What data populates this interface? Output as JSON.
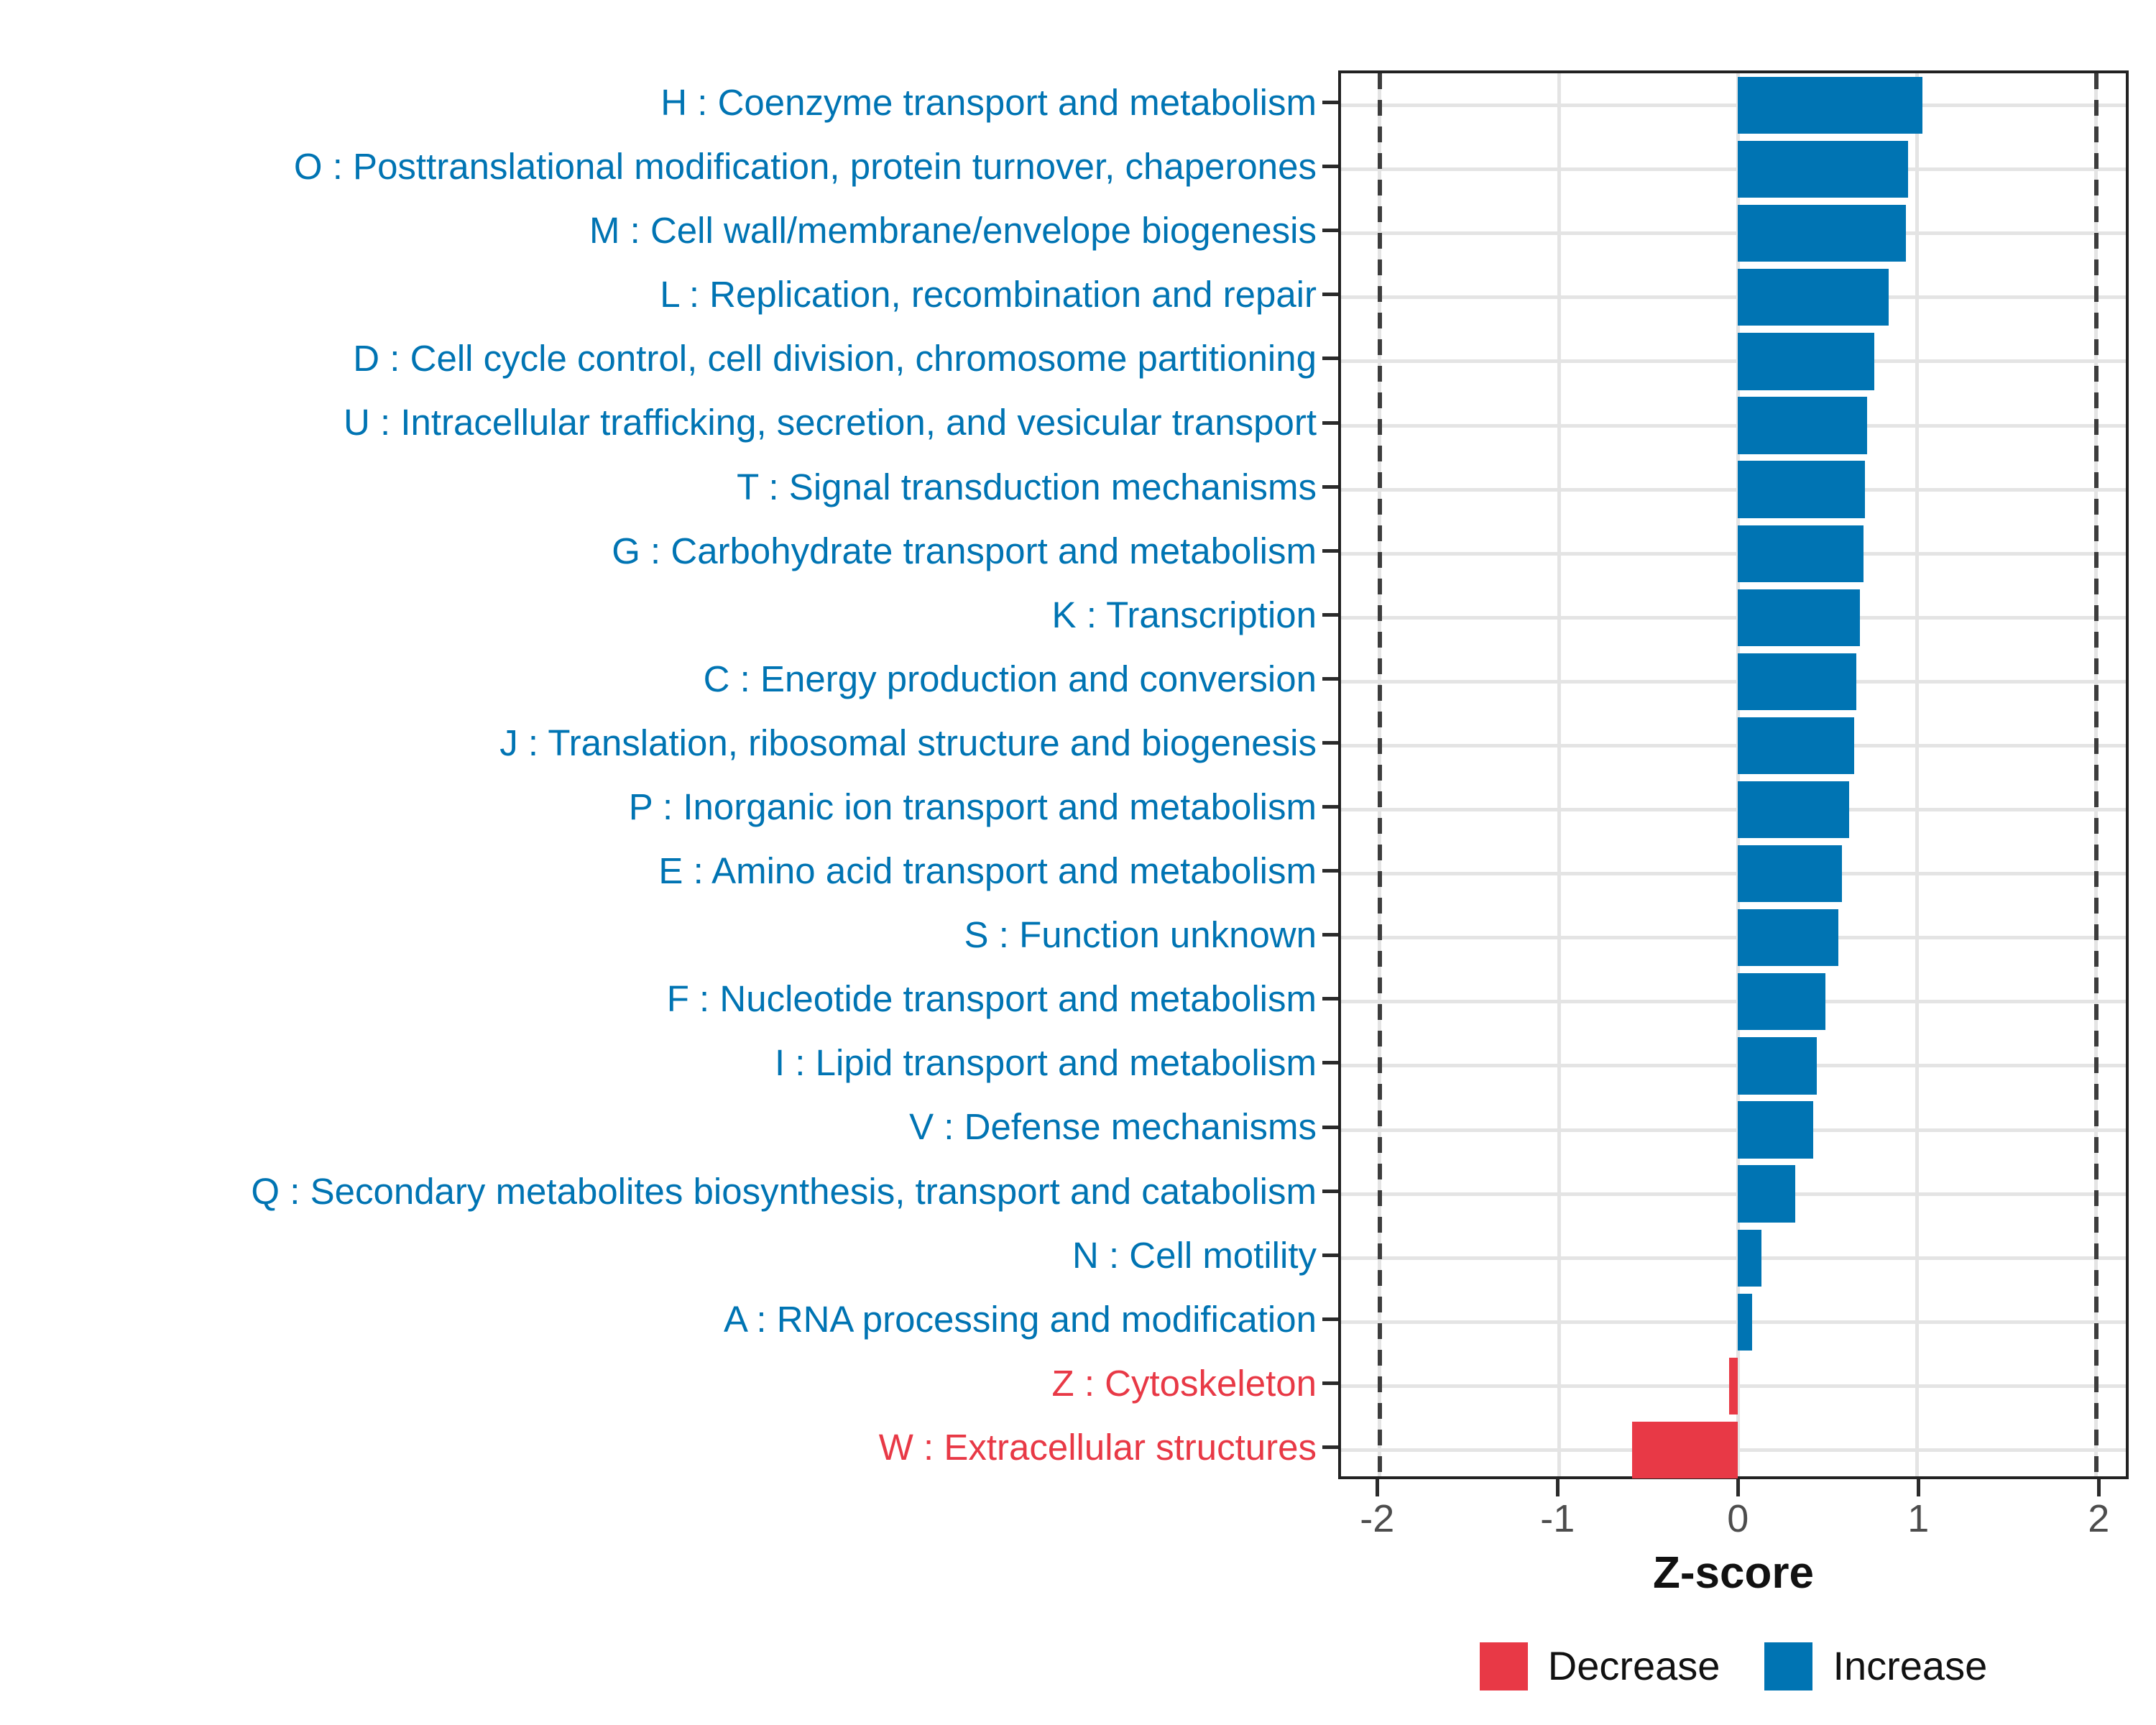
{
  "chart_data": {
    "type": "bar",
    "orientation": "horizontal",
    "title": "",
    "xlabel": "Z-score",
    "ylabel": "",
    "xlim": [
      -2.22,
      2.17
    ],
    "x_ticks": [
      -2,
      -1,
      0,
      1,
      2
    ],
    "reference_lines_x": [
      -2,
      2
    ],
    "grid": "major",
    "legend_position": "bottom",
    "series": [
      {
        "name": "Decrease",
        "color": "#E83946"
      },
      {
        "name": "Increase",
        "color": "#0074B3"
      }
    ],
    "bars": [
      {
        "category": "H : Coenzyme transport and metabolism",
        "value": 1.03,
        "group": "Increase"
      },
      {
        "category": "O : Posttranslational modification, protein turnover, chaperones",
        "value": 0.95,
        "group": "Increase"
      },
      {
        "category": "M : Cell wall/membrane/envelope biogenesis",
        "value": 0.94,
        "group": "Increase"
      },
      {
        "category": "L : Replication, recombination and repair",
        "value": 0.84,
        "group": "Increase"
      },
      {
        "category": "D : Cell cycle control, cell division, chromosome partitioning",
        "value": 0.76,
        "group": "Increase"
      },
      {
        "category": "U : Intracellular trafficking, secretion, and vesicular transport",
        "value": 0.72,
        "group": "Increase"
      },
      {
        "category": "T : Signal transduction mechanisms",
        "value": 0.71,
        "group": "Increase"
      },
      {
        "category": "G : Carbohydrate transport and metabolism",
        "value": 0.7,
        "group": "Increase"
      },
      {
        "category": "K : Transcription",
        "value": 0.68,
        "group": "Increase"
      },
      {
        "category": "C : Energy production and conversion",
        "value": 0.66,
        "group": "Increase"
      },
      {
        "category": "J : Translation, ribosomal structure and biogenesis",
        "value": 0.65,
        "group": "Increase"
      },
      {
        "category": "P : Inorganic ion transport and metabolism",
        "value": 0.62,
        "group": "Increase"
      },
      {
        "category": "E : Amino acid transport and metabolism",
        "value": 0.58,
        "group": "Increase"
      },
      {
        "category": "S : Function unknown",
        "value": 0.56,
        "group": "Increase"
      },
      {
        "category": "F : Nucleotide transport and metabolism",
        "value": 0.49,
        "group": "Increase"
      },
      {
        "category": "I : Lipid transport and metabolism",
        "value": 0.44,
        "group": "Increase"
      },
      {
        "category": "V : Defense mechanisms",
        "value": 0.42,
        "group": "Increase"
      },
      {
        "category": "Q : Secondary metabolites biosynthesis, transport and catabolism",
        "value": 0.32,
        "group": "Increase"
      },
      {
        "category": "N : Cell motility",
        "value": 0.13,
        "group": "Increase"
      },
      {
        "category": "A : RNA processing and modification",
        "value": 0.08,
        "group": "Increase"
      },
      {
        "category": "Z : Cytoskeleton",
        "value": -0.05,
        "group": "Decrease"
      },
      {
        "category": "W : Extracellular structures",
        "value": -0.59,
        "group": "Decrease"
      }
    ]
  },
  "colors": {
    "increase": "#0074B3",
    "decrease": "#E83946",
    "gridline": "#e4e4e4",
    "panel_border": "#222222",
    "tick_text": "#4d4d4d",
    "reference_line": "#3d3d3d"
  }
}
